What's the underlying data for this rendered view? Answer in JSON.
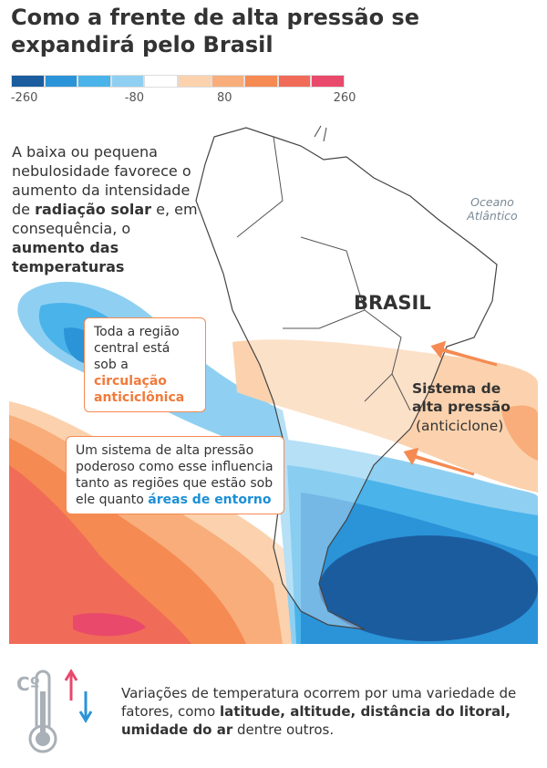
{
  "header": {
    "title": "Como a frente de alta pressão se expandirá pelo Brasil"
  },
  "legend": {
    "colors": [
      "#1b5c9f",
      "#2b93d8",
      "#4ab3ea",
      "#8fd0f2",
      "#ffffff",
      "#fbd2ad",
      "#f8ad7a",
      "#f58a52",
      "#f06b58",
      "#e9496b"
    ],
    "ticks": [
      -260,
      -80,
      80,
      260
    ]
  },
  "intro": {
    "parts": [
      "A baixa ou pequena nebulosidade favorece o aumento da intensidade de ",
      "radiação solar",
      " e, em consequência, o ",
      "aumento das temperaturas"
    ],
    "styles": [
      "plain",
      "bold",
      "plain",
      "bold"
    ]
  },
  "map_labels": {
    "ocean": "Oceano Atlântico",
    "country": "BRASIL",
    "system": "Sistema de alta pressão",
    "system_note": "(anticiclone)"
  },
  "callouts": [
    {
      "parts": [
        "Toda a região central está sob a ",
        "circulação anticiclônica"
      ],
      "styles": [
        "plain",
        "orange"
      ]
    },
    {
      "parts": [
        "Um sistema de alta pressão poderoso como esse influencia tanto as regiões que estão sob ele quanto ",
        "áreas de entorno"
      ],
      "styles": [
        "plain",
        "blue"
      ]
    }
  ],
  "footer": {
    "icon_label": "Cº",
    "parts": [
      "Variações de temperatura ocorrem por uma variedade de fatores, como ",
      "latitude, altitude, distância do litoral, umidade do ar",
      " dentre outros."
    ],
    "styles": [
      "plain",
      "bold",
      "plain"
    ]
  }
}
